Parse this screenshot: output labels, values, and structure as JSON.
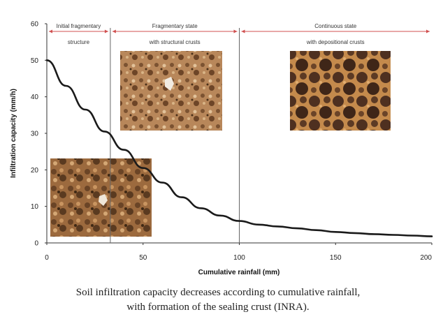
{
  "chart_data": {
    "type": "line",
    "xlabel": "Cumulative rainfall (mm)",
    "ylabel": "Infiltration capacity (mm/h)",
    "xlim": [
      0,
      200
    ],
    "ylim": [
      0,
      60
    ],
    "xticks": [
      0,
      50,
      100,
      150,
      200
    ],
    "yticks": [
      0,
      10,
      20,
      30,
      40,
      50,
      60
    ],
    "series": [
      {
        "x": [
          0,
          10,
          20,
          30,
          40,
          50,
          60,
          70,
          80,
          90,
          100,
          110,
          120,
          130,
          140,
          150,
          160,
          170,
          180,
          190,
          200
        ],
        "y": [
          50,
          43,
          36.5,
          30.5,
          25.5,
          20.5,
          16.5,
          12.5,
          9.5,
          7.5,
          6,
          5,
          4.5,
          4,
          3.5,
          3,
          2.7,
          2.4,
          2.2,
          2,
          1.8
        ],
        "color": "#1a1a1a"
      }
    ],
    "stage_boundaries": [
      33,
      100
    ],
    "stages": [
      {
        "label": "Initial fragmentary",
        "sublabel": "structure",
        "from": 0,
        "to": 33
      },
      {
        "label": "Fragmentary state",
        "sublabel": "with structural crusts",
        "from": 33,
        "to": 100
      },
      {
        "label": "Continuous state",
        "sublabel": "with depositional crusts",
        "from": 100,
        "to": 200
      }
    ],
    "stage_marker_color": "#d05050",
    "grid": false
  },
  "caption": {
    "line1": "Soil infiltration capacity decreases according to cumulative rainfall,",
    "line2": "with formation of the sealing crust (INRA)."
  }
}
